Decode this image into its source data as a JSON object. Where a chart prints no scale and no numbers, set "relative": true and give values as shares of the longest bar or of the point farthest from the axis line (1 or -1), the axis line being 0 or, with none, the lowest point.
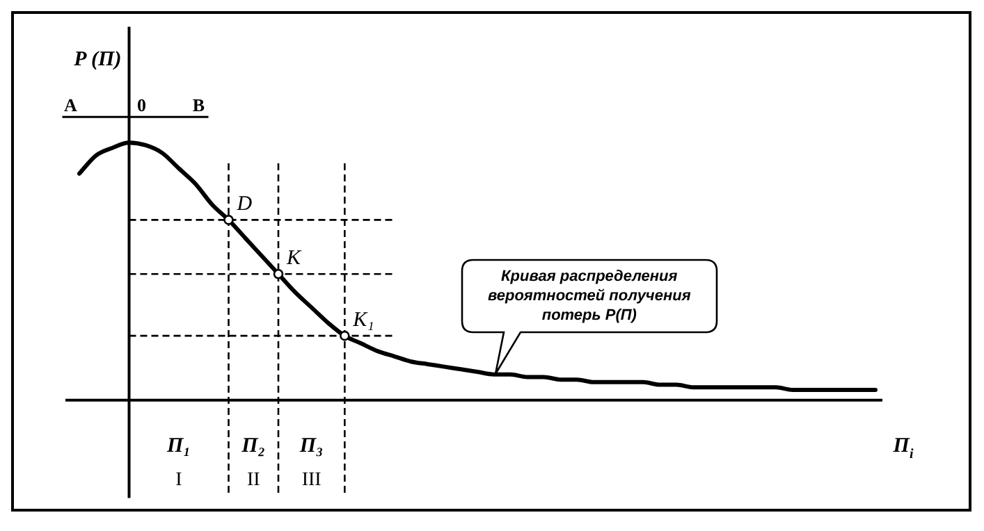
{
  "chart_data": {
    "type": "line",
    "relative": true,
    "ylabel": "P (П)",
    "xlabel": "П$_{i}$",
    "marker": "none",
    "grid": "x",
    "legend": false,
    "categories": [
      null,
      null,
      null,
      null,
      null,
      null,
      null,
      null,
      null,
      null,
      null,
      null,
      null,
      null,
      null,
      null,
      null,
      null,
      null,
      null,
      null,
      null,
      null,
      null,
      null,
      null,
      null,
      null,
      null,
      null,
      null,
      null,
      null,
      null,
      null,
      null,
      null,
      null,
      null,
      null,
      null,
      null,
      null,
      null,
      null,
      null,
      null,
      null,
      null
    ],
    "series": [
      {
        "color": "#000000",
        "values": [
          0.88,
          0.95,
          0.98,
          1,
          0.99,
          0.96,
          0.9,
          0.84,
          0.76,
          0.7,
          0.63,
          0.56,
          0.49,
          0.42,
          0.36,
          0.3,
          0.25,
          0.22,
          0.19,
          0.17,
          0.15,
          0.14,
          0.13,
          0.12,
          0.11,
          0.1,
          0.1,
          0.09,
          0.09,
          0.08,
          0.08,
          0.07,
          0.07,
          0.07,
          0.07,
          0.06,
          0.06,
          0.05,
          0.05,
          0.05,
          0.05,
          0.05,
          0.05,
          0.04,
          0.04,
          0.04,
          0.04,
          0.04,
          0.04
        ]
      }
    ],
    "ref_lines": [
      {
        "axis": "y",
        "value": 0.7,
        "line_style": "dashed"
      },
      {
        "axis": "y",
        "value": 0.49,
        "line_style": "dashed"
      },
      {
        "axis": "y",
        "value": 0.25,
        "line_style": "dashed"
      }
    ],
    "annotations": [
      "A",
      "0",
      "B",
      "D",
      "K",
      "K₁",
      "П₁",
      "I",
      "П₂",
      "II",
      "П₃",
      "III",
      "Кривая распределения вероятностей получения потерь P(П)"
    ]
  }
}
